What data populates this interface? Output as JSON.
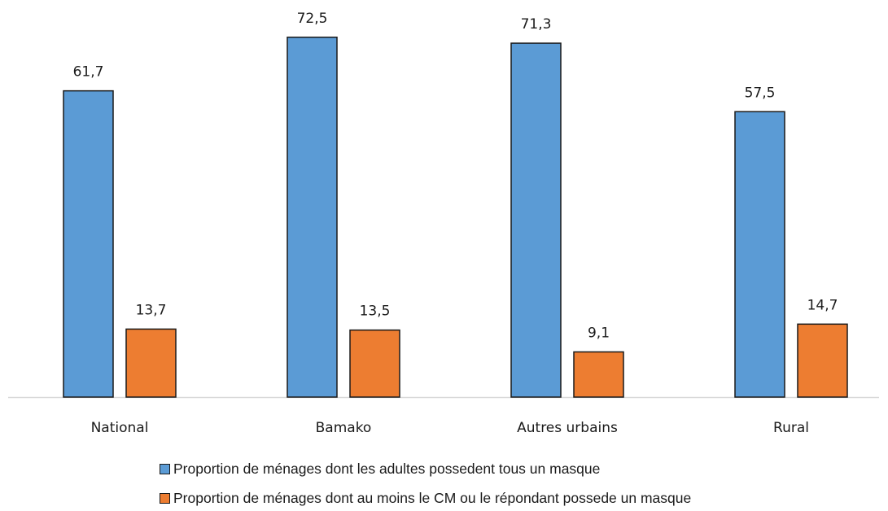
{
  "chart_data": {
    "type": "bar",
    "categories": [
      "National",
      "Bamako",
      "Autres urbains",
      "Rural"
    ],
    "series": [
      {
        "name": "Proportion de ménages dont les adultes possedent tous un masque",
        "color": "#5b9bd5",
        "values": [
          61.7,
          72.5,
          71.3,
          57.5
        ],
        "labels": [
          "61,7",
          "72,5",
          "71,3",
          "57,5"
        ]
      },
      {
        "name": "Proportion de ménages dont au moins le CM ou le répondant possede un masque",
        "color": "#ed7d31",
        "values": [
          13.7,
          13.5,
          9.1,
          14.7
        ],
        "labels": [
          "13,7",
          "13,5",
          "9,1",
          "14,7"
        ]
      }
    ],
    "ylim": [
      0,
      80
    ],
    "grid": false,
    "legend_position": "bottom"
  }
}
